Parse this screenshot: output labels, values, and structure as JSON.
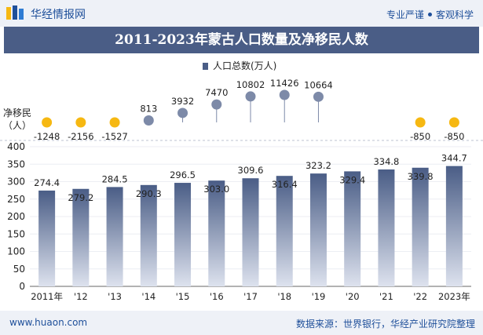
{
  "header": {
    "brand": "华经情报网",
    "tagline_left": "专业严谨",
    "tagline_right": "客观科学"
  },
  "title": "2011-2023年蒙古人口数量及净移民人数",
  "footer": {
    "website": "www.huaon.com",
    "source": "数据来源：世界银行，华经产业研究院整理"
  },
  "colors": {
    "bar": "#4a5d86",
    "bar_light": "#d9dfec",
    "positive_marker": "#7d8aa8",
    "negative_marker": "#f6b812",
    "title_bg": "#4a5d86",
    "header_bg": "#eef1f7",
    "brand_text": "#1e4f9a"
  },
  "chart_data": {
    "type": "bar",
    "categories": [
      "2011年",
      "'12",
      "'13",
      "'14",
      "'15",
      "'16",
      "'17",
      "'18",
      "'19",
      "'20",
      "'21",
      "'22",
      "2023年"
    ],
    "series": [
      {
        "name": "人口总数(万人)",
        "values": [
          274.4,
          279.2,
          284.5,
          290.3,
          296.5,
          303.0,
          309.6,
          316.4,
          323.2,
          329.4,
          334.8,
          339.8,
          344.7
        ],
        "labels": [
          "274.4",
          "279.2",
          "284.5",
          "290.3",
          "296.5",
          "303.0",
          "309.6",
          "316.4",
          "323.2",
          "329.4",
          "334.8",
          "339.8",
          "344.7"
        ]
      },
      {
        "values": [
          -1248,
          -2156,
          -1527,
          813,
          3932,
          7470,
          10802,
          11426,
          10664,
          null,
          null,
          -850,
          -850
        ],
        "labels": [
          "-1248",
          "-2156",
          "-1527",
          "813",
          "3932",
          "7470",
          "10802",
          "11426",
          "10664",
          "",
          "",
          "-850",
          "-850"
        ]
      }
    ],
    "net_migration_axis_label": [
      "净移民",
      "（人）"
    ],
    "yticks": [
      "0",
      "50",
      "100",
      "150",
      "200",
      "250",
      "300",
      "350",
      "400"
    ],
    "ylim": [
      0,
      400
    ],
    "legend": "top-center"
  }
}
